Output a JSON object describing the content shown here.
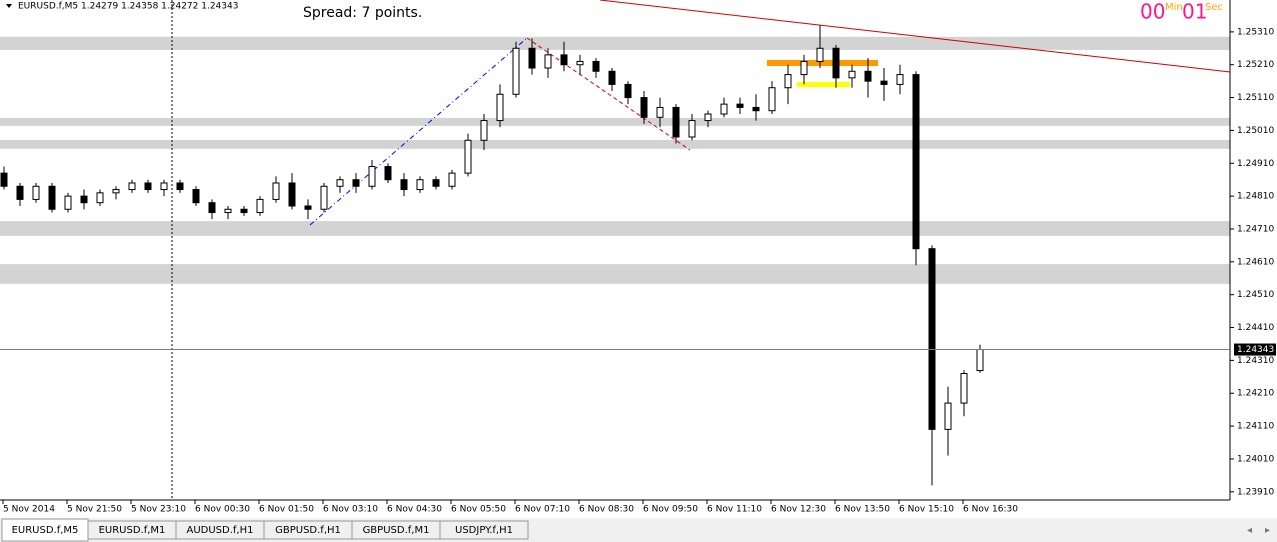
{
  "window": {
    "symbol_info": "EURUSD.f,M5  1.24279 1.24358 1.24272 1.24343",
    "spread": "Spread: 7 points.",
    "timer": {
      "min_value": "00",
      "min_label": "Min",
      "sec_value": "01",
      "sec_label": "Sec"
    }
  },
  "chart_data": {
    "type": "candlestick",
    "categories": [
      "5 Nov 2014",
      "5 Nov 21:50",
      "5 Nov 23:10",
      "6 Nov 00:30",
      "6 Nov 01:50",
      "6 Nov 03:10",
      "6 Nov 04:30",
      "6 Nov 05:50",
      "6 Nov 07:10",
      "6 Nov 08:30",
      "6 Nov 09:50",
      "6 Nov 11:10",
      "6 Nov 12:30",
      "6 Nov 13:50",
      "6 Nov 15:10",
      "6 Nov 16:30"
    ],
    "ohlc": [
      [
        1.2488,
        1.249,
        1.2483,
        1.2484
      ],
      [
        1.2484,
        1.2485,
        1.2478,
        1.248
      ],
      [
        1.248,
        1.2485,
        1.2479,
        1.2484
      ],
      [
        1.2484,
        1.2485,
        1.2476,
        1.2477
      ],
      [
        1.2477,
        1.2482,
        1.2476,
        1.2481
      ],
      [
        1.2481,
        1.2483,
        1.2477,
        1.2479
      ],
      [
        1.2479,
        1.2483,
        1.2478,
        1.2482
      ],
      [
        1.2482,
        1.2484,
        1.248,
        1.2483
      ],
      [
        1.2483,
        1.2486,
        1.2482,
        1.2485
      ],
      [
        1.2485,
        1.2486,
        1.2482,
        1.2483
      ],
      [
        1.2483,
        1.2486,
        1.2481,
        1.2485
      ],
      [
        1.2485,
        1.2486,
        1.2482,
        1.2483
      ],
      [
        1.2483,
        1.2484,
        1.2478,
        1.2479
      ],
      [
        1.2479,
        1.248,
        1.2474,
        1.2476
      ],
      [
        1.2476,
        1.2478,
        1.2474,
        1.2477
      ],
      [
        1.2477,
        1.2478,
        1.2475,
        1.2476
      ],
      [
        1.2476,
        1.2481,
        1.2475,
        1.248
      ],
      [
        1.248,
        1.2487,
        1.2479,
        1.2485
      ],
      [
        1.2485,
        1.2488,
        1.2477,
        1.2478
      ],
      [
        1.2478,
        1.248,
        1.2474,
        1.2477
      ],
      [
        1.2477,
        1.2485,
        1.2476,
        1.2484
      ],
      [
        1.2484,
        1.2487,
        1.2482,
        1.2486
      ],
      [
        1.2486,
        1.2488,
        1.2482,
        1.2484
      ],
      [
        1.2484,
        1.2492,
        1.2483,
        1.249
      ],
      [
        1.249,
        1.2491,
        1.2485,
        1.2486
      ],
      [
        1.2486,
        1.2488,
        1.2481,
        1.2483
      ],
      [
        1.2483,
        1.2487,
        1.2482,
        1.2486
      ],
      [
        1.2486,
        1.2487,
        1.2483,
        1.2484
      ],
      [
        1.2484,
        1.2489,
        1.2483,
        1.2488
      ],
      [
        1.2488,
        1.25,
        1.2487,
        1.2498
      ],
      [
        1.2498,
        1.2506,
        1.2495,
        1.2504
      ],
      [
        1.2504,
        1.2515,
        1.2502,
        1.2512
      ],
      [
        1.2512,
        1.2528,
        1.2511,
        1.2526
      ],
      [
        1.2526,
        1.2529,
        1.2518,
        1.252
      ],
      [
        1.252,
        1.2526,
        1.2517,
        1.2524
      ],
      [
        1.2524,
        1.2528,
        1.2519,
        1.2521
      ],
      [
        1.2521,
        1.2524,
        1.2518,
        1.2522
      ],
      [
        1.2522,
        1.2523,
        1.2517,
        1.2519
      ],
      [
        1.2519,
        1.252,
        1.2513,
        1.2515
      ],
      [
        1.2515,
        1.2516,
        1.2509,
        1.2511
      ],
      [
        1.2511,
        1.2513,
        1.2503,
        1.2505
      ],
      [
        1.2505,
        1.2511,
        1.2502,
        1.2508
      ],
      [
        1.2508,
        1.2509,
        1.2497,
        1.2499
      ],
      [
        1.2499,
        1.2506,
        1.2498,
        1.2504
      ],
      [
        1.2504,
        1.2507,
        1.2502,
        1.2506
      ],
      [
        1.2506,
        1.2511,
        1.2505,
        1.2509
      ],
      [
        1.2509,
        1.2511,
        1.2506,
        1.2508
      ],
      [
        1.2508,
        1.2512,
        1.2504,
        1.2507
      ],
      [
        1.2507,
        1.2516,
        1.2506,
        1.2514
      ],
      [
        1.2514,
        1.2521,
        1.2509,
        1.2518
      ],
      [
        1.2518,
        1.2524,
        1.2515,
        1.2522
      ],
      [
        1.2522,
        1.2533,
        1.252,
        1.2526
      ],
      [
        1.2526,
        1.2527,
        1.2514,
        1.2517
      ],
      [
        1.2517,
        1.2521,
        1.2514,
        1.2519
      ],
      [
        1.2519,
        1.2523,
        1.2511,
        1.2516
      ],
      [
        1.2516,
        1.252,
        1.251,
        1.2515
      ],
      [
        1.2515,
        1.2521,
        1.2512,
        1.2518
      ],
      [
        1.2518,
        1.2519,
        1.246,
        1.2465
      ],
      [
        1.2465,
        1.2466,
        1.2393,
        1.241
      ],
      [
        1.241,
        1.2423,
        1.2402,
        1.2418
      ],
      [
        1.2418,
        1.2428,
        1.2414,
        1.2427
      ],
      [
        1.24279,
        1.24358,
        1.24272,
        1.24343
      ]
    ],
    "ylim": [
      1.23885,
      1.25407
    ],
    "yticks": [
      {
        "value": 1.2531,
        "label": "1.25310"
      },
      {
        "value": 1.2521,
        "label": "1.25210"
      },
      {
        "value": 1.2511,
        "label": "1.25110"
      },
      {
        "value": 1.2501,
        "label": "1.25010"
      },
      {
        "value": 1.2491,
        "label": "1.24910"
      },
      {
        "value": 1.2481,
        "label": "1.24810"
      },
      {
        "value": 1.2471,
        "label": "1.24710"
      },
      {
        "value": 1.2461,
        "label": "1.24610"
      },
      {
        "value": 1.2451,
        "label": "1.24510"
      },
      {
        "value": 1.2441,
        "label": "1.24410"
      },
      {
        "value": 1.2431,
        "label": "1.24310"
      },
      {
        "value": 1.2421,
        "label": "1.24210"
      },
      {
        "value": 1.2411,
        "label": "1.24110"
      },
      {
        "value": 1.2401,
        "label": "1.24010"
      },
      {
        "value": 1.2391,
        "label": "1.23910"
      }
    ],
    "bid_line": 1.24343,
    "zones": [
      [
        1.25255,
        1.25295
      ],
      [
        1.25024,
        1.25048
      ],
      [
        1.24954,
        1.24981
      ],
      [
        1.24689,
        1.24734
      ],
      [
        1.24543,
        1.24603
      ]
    ],
    "zone_color": "#d3d3d3",
    "bull_color": "#ffffff",
    "bear_color": "#000000"
  },
  "tabs": [
    "EURUSD.f,M5",
    "EURUSD.f,M1",
    "AUDUSD.f,H1",
    "GBPUSD.f,H1",
    "GBPUSD.f,M1",
    "USDJPY.f,H1"
  ]
}
